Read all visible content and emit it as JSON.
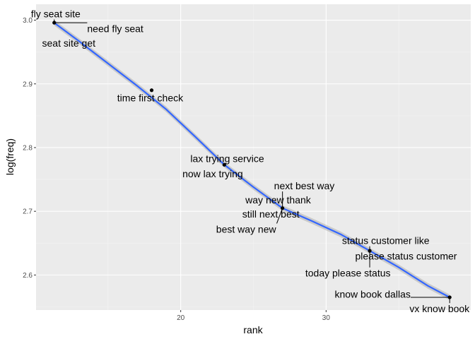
{
  "chart_data": {
    "type": "scatter",
    "title": "",
    "xlabel": "rank",
    "ylabel": "log(freq)",
    "xlim": [
      10.05,
      39.95
    ],
    "ylim": [
      2.545,
      3.025
    ],
    "x_ticks": [
      20,
      30
    ],
    "x_tick_labels": [
      "20",
      "30"
    ],
    "y_ticks": [
      2.6,
      2.7,
      2.8,
      2.9,
      3.0
    ],
    "y_tick_labels": [
      "2.6",
      "2.7",
      "2.8",
      "2.9",
      "3.0"
    ],
    "grid": true,
    "legend": "none",
    "points": [
      {
        "x": 11.3,
        "y": 2.996
      },
      {
        "x": 18.0,
        "y": 2.89
      },
      {
        "x": 23.0,
        "y": 2.773
      },
      {
        "x": 27.0,
        "y": 2.705
      },
      {
        "x": 33.0,
        "y": 2.638
      },
      {
        "x": 38.5,
        "y": 2.565
      }
    ],
    "smooth_line": {
      "x": [
        11.3,
        13,
        15,
        17,
        19,
        21,
        23,
        25,
        27,
        29,
        31,
        33,
        35,
        37,
        38.5
      ],
      "y": [
        2.996,
        2.967,
        2.932,
        2.897,
        2.86,
        2.817,
        2.773,
        2.738,
        2.705,
        2.685,
        2.664,
        2.638,
        2.612,
        2.583,
        2.565
      ]
    },
    "annotations": [
      {
        "text": "fly seat site",
        "point": 0,
        "x": 11.4,
        "y": 3.01,
        "anchor": "middle",
        "leader": true
      },
      {
        "text": "need fly seat",
        "point": 0,
        "x": 15.5,
        "y": 2.987,
        "anchor": "middle",
        "leader": true
      },
      {
        "text": "seat site get",
        "point": 0,
        "x": 12.3,
        "y": 2.964,
        "anchor": "middle",
        "leader": false
      },
      {
        "text": "time first check",
        "point": 1,
        "x": 17.9,
        "y": 2.878,
        "anchor": "middle",
        "leader": false
      },
      {
        "text": "lax trying service",
        "point": 2,
        "x": 23.2,
        "y": 2.783,
        "anchor": "middle",
        "leader": false
      },
      {
        "text": "now lax trying",
        "point": 2,
        "x": 22.2,
        "y": 2.759,
        "anchor": "middle",
        "leader": false
      },
      {
        "text": "next best way",
        "point": 3,
        "x": 28.5,
        "y": 2.74,
        "anchor": "middle",
        "leader": true
      },
      {
        "text": "way new thank",
        "point": 3,
        "x": 26.7,
        "y": 2.718,
        "anchor": "middle",
        "leader": false
      },
      {
        "text": "still next best",
        "point": 3,
        "x": 26.2,
        "y": 2.696,
        "anchor": "middle",
        "leader": false
      },
      {
        "text": "best way new",
        "point": 3,
        "x": 24.5,
        "y": 2.672,
        "anchor": "middle",
        "leader": true
      },
      {
        "text": "status customer like",
        "point": 4,
        "x": 34.1,
        "y": 2.654,
        "anchor": "middle",
        "leader": true
      },
      {
        "text": "please status customer",
        "point": 4,
        "x": 35.5,
        "y": 2.63,
        "anchor": "middle",
        "leader": false
      },
      {
        "text": "today please status",
        "point": 4,
        "x": 31.5,
        "y": 2.603,
        "anchor": "middle",
        "leader": true
      },
      {
        "text": "know book dallas",
        "point": 5,
        "x": 33.2,
        "y": 2.57,
        "anchor": "middle",
        "leader": true
      },
      {
        "text": "vx know book",
        "point": 5,
        "x": 37.8,
        "y": 2.547,
        "anchor": "middle",
        "leader": true
      }
    ]
  },
  "style": {
    "panel_bg": "#ebebeb",
    "grid_major": "#ffffff",
    "grid_minor": "#f4f4f4",
    "point_color": "#000000",
    "line_color": "#3366ff",
    "ribbon_color": "#999999"
  }
}
